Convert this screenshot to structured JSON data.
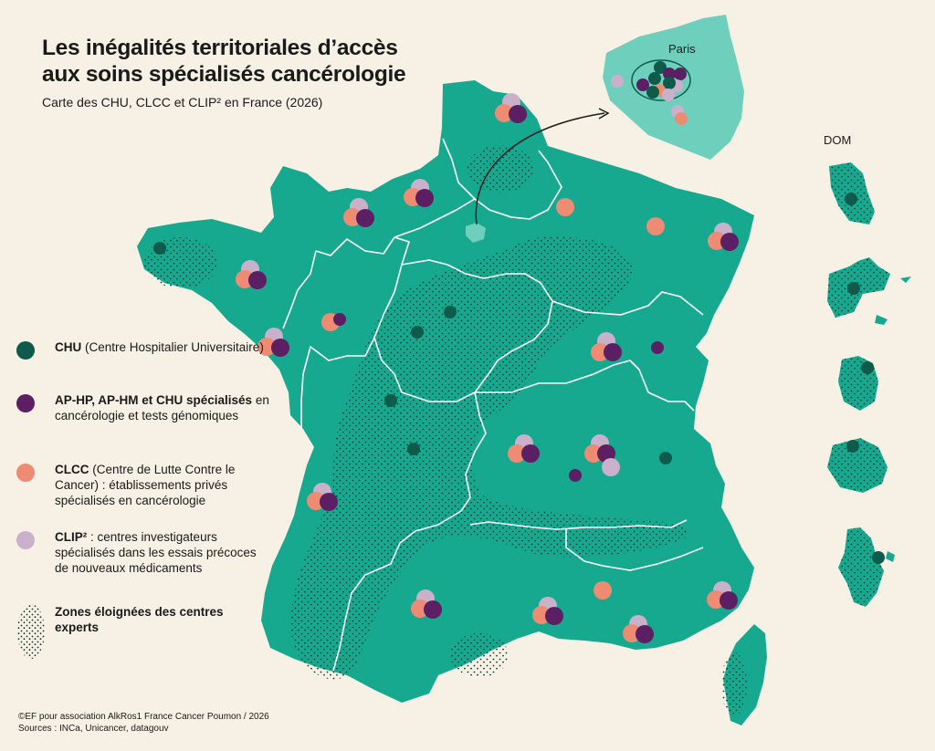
{
  "title_line1": "Les inégalités territoriales d’accès",
  "title_line2": "aux soins spécialisés cancérologie",
  "subtitle": "Carte des CHU, CLCC et CLIP² en France (2026)",
  "paris_label": "Paris",
  "dom_label": "DOM",
  "colors": {
    "background": "#f6f1e4",
    "land": "#17a990",
    "paris_inset": "#6fcfbd",
    "chu": "#0e5a4b",
    "aphp": "#5c1f63",
    "clcc": "#ee8b73",
    "clip": "#cbb0cc",
    "dots": "#0a3a30"
  },
  "legend": {
    "chu_bold": "CHU",
    "chu_text": " (Centre Hospitalier Universitaire)",
    "aphp_bold": "AP-HP, AP-HM et CHU spécialisés",
    "aphp_text": " en cancérologie et tests génomiques",
    "clcc_bold": "CLCC",
    "clcc_text": " (Centre de Lutte Contre le Cancer) : établissements privés spécialisés en cancérologie",
    "clip_bold": "CLIP²",
    "clip_text": " : centres investigateurs spécialisés dans les essais précoces de nouveaux médicaments",
    "zones_bold": "Zones éloignées des centres experts"
  },
  "footer_line1": "©EF pour association AlkRos1 France Cancer Poumon / 2026",
  "footer_line2": "Sources : INCa, Unicancer, datagouv"
}
